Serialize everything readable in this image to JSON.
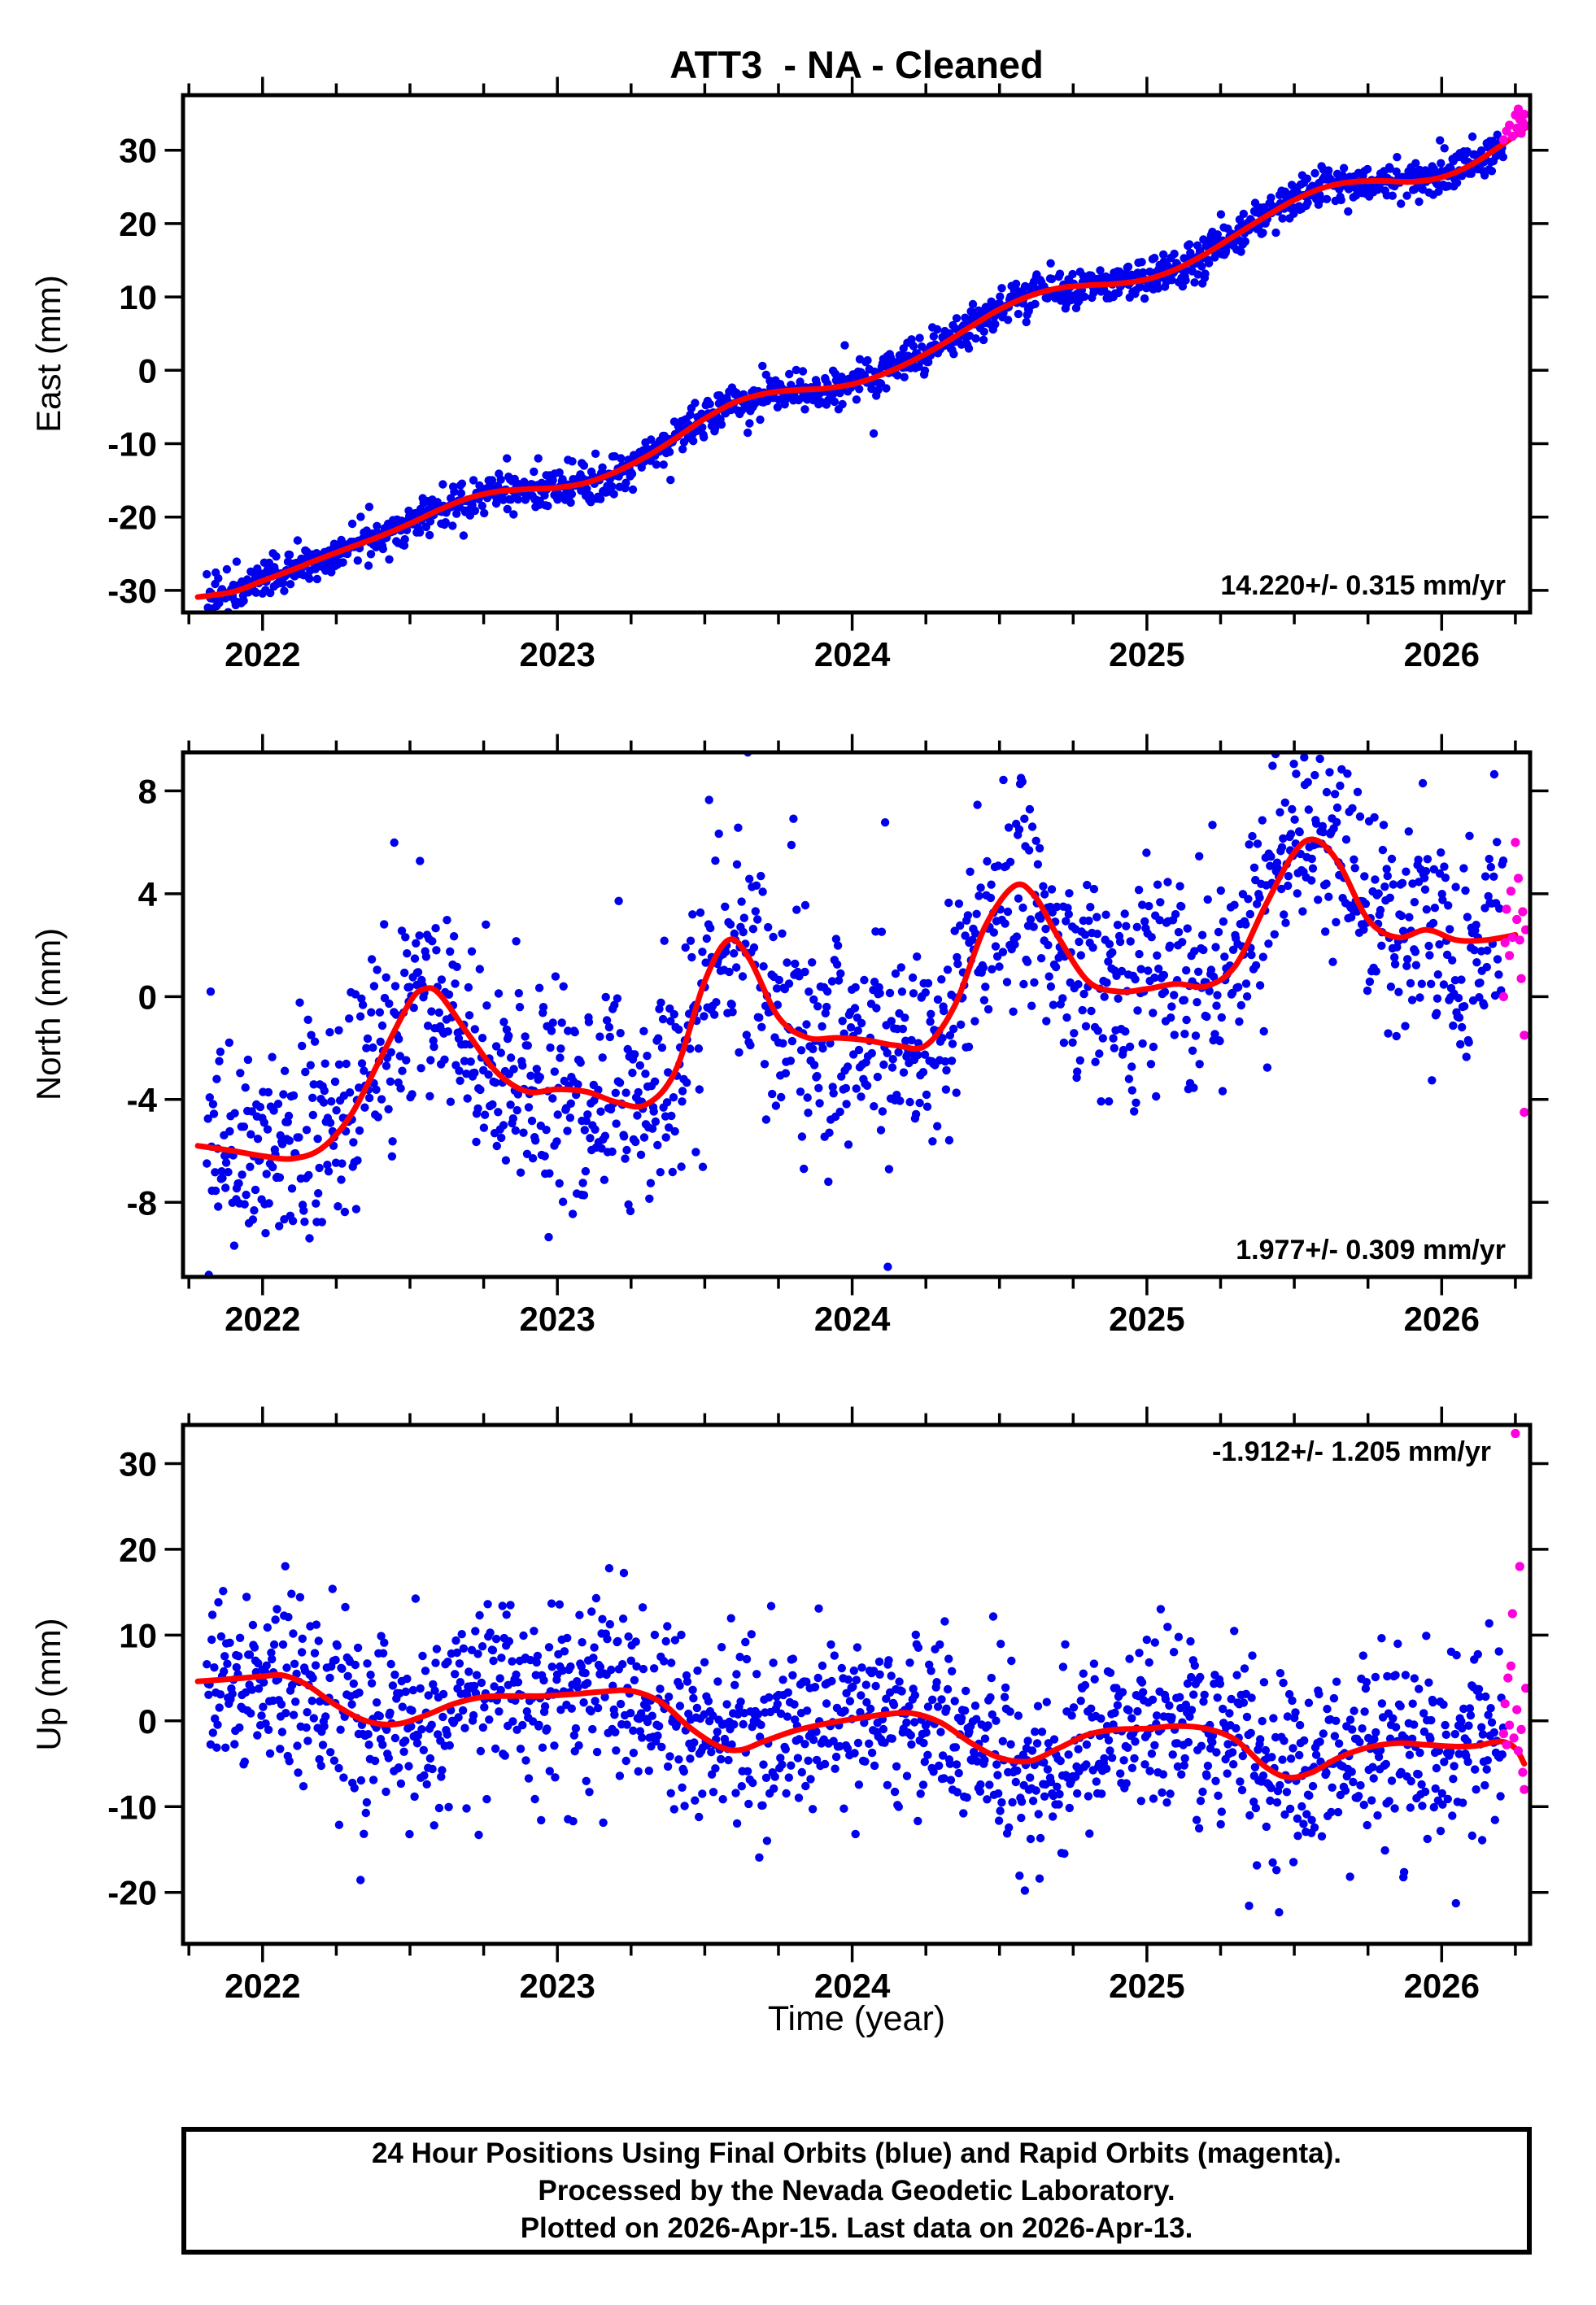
{
  "title": "ATT3  - NA - Cleaned",
  "xlabel": "Time (year)",
  "caption": {
    "lines": [
      "24 Hour Positions Using Final Orbits (blue) and Rapid Orbits (magenta).",
      "Processed by the Nevada Geodetic Laboratory.",
      "Plotted on 2026-Apr-15. Last data on 2026-Apr-13."
    ]
  },
  "colors": {
    "final_orbits": "#0000ee",
    "rapid_orbits": "#ff00dd",
    "trend": "#ff0000",
    "frame": "#000000"
  },
  "chart_data": [
    {
      "type": "scatter",
      "ylabel": "East (mm)",
      "ylim": [
        -33,
        37.5
      ],
      "yticks": [
        -30,
        -20,
        -10,
        0,
        10,
        20,
        30
      ],
      "xlim": [
        2021.73,
        2026.3
      ],
      "xticks": [
        2022,
        2023,
        2024,
        2025,
        2026
      ],
      "minor_tick_interval": 0.25,
      "rate_label": "14.220+/- 0.315 mm/yr",
      "rate_label_pos": "bottom-right",
      "trend": [
        [
          2021.78,
          -30.9
        ],
        [
          2021.9,
          -30.2
        ],
        [
          2022.0,
          -28.7
        ],
        [
          2022.1,
          -27.2
        ],
        [
          2022.2,
          -25.6
        ],
        [
          2022.3,
          -24.1
        ],
        [
          2022.4,
          -22.6
        ],
        [
          2022.5,
          -20.9
        ],
        [
          2022.6,
          -19.0
        ],
        [
          2022.7,
          -17.4
        ],
        [
          2022.8,
          -16.5
        ],
        [
          2022.9,
          -16.2
        ],
        [
          2023.0,
          -16.0
        ],
        [
          2023.1,
          -15.3
        ],
        [
          2023.2,
          -13.8
        ],
        [
          2023.3,
          -11.8
        ],
        [
          2023.4,
          -9.3
        ],
        [
          2023.5,
          -6.6
        ],
        [
          2023.6,
          -4.4
        ],
        [
          2023.7,
          -3.2
        ],
        [
          2023.8,
          -2.7
        ],
        [
          2023.9,
          -2.5
        ],
        [
          2024.0,
          -1.9
        ],
        [
          2024.1,
          -0.6
        ],
        [
          2024.2,
          1.2
        ],
        [
          2024.3,
          3.4
        ],
        [
          2024.4,
          5.9
        ],
        [
          2024.5,
          8.3
        ],
        [
          2024.6,
          10.1
        ],
        [
          2024.7,
          11.2
        ],
        [
          2024.8,
          11.6
        ],
        [
          2024.9,
          11.8
        ],
        [
          2025.0,
          12.4
        ],
        [
          2025.1,
          13.8
        ],
        [
          2025.2,
          15.9
        ],
        [
          2025.3,
          18.4
        ],
        [
          2025.4,
          20.9
        ],
        [
          2025.5,
          23.2
        ],
        [
          2025.6,
          24.9
        ],
        [
          2025.7,
          25.7
        ],
        [
          2025.8,
          25.8
        ],
        [
          2025.9,
          25.7
        ],
        [
          2026.0,
          26.3
        ],
        [
          2026.1,
          28.0
        ],
        [
          2026.2,
          30.6
        ],
        [
          2026.28,
          32.9
        ]
      ],
      "scatter": {
        "n": 1480,
        "x_start": 2021.81,
        "x_end": 2026.21,
        "noise_sd": 1.25,
        "outlier_frac": 0.05,
        "outlier_scale": 2.0,
        "seed": 7
      },
      "rapid_points": [
        [
          2026.21,
          31.4
        ],
        [
          2026.22,
          32.6
        ],
        [
          2026.23,
          33.4
        ],
        [
          2026.24,
          31.9
        ],
        [
          2026.25,
          34.8
        ],
        [
          2026.255,
          33.0
        ],
        [
          2026.26,
          35.6
        ],
        [
          2026.265,
          34.2
        ],
        [
          2026.27,
          32.3
        ],
        [
          2026.275,
          33.8
        ],
        [
          2026.28,
          34.9
        ],
        [
          2026.285,
          33.3
        ]
      ]
    },
    {
      "type": "scatter",
      "ylabel": "North (mm)",
      "ylim": [
        -10.9,
        9.5
      ],
      "yticks": [
        -8,
        -4,
        0,
        4,
        8
      ],
      "xlim": [
        2021.73,
        2026.3
      ],
      "xticks": [
        2022,
        2023,
        2024,
        2025,
        2026
      ],
      "minor_tick_interval": 0.25,
      "rate_label": "1.977+/- 0.309 mm/yr",
      "rate_label_pos": "bottom-right",
      "trend": [
        [
          2021.78,
          -5.8
        ],
        [
          2021.9,
          -6.0
        ],
        [
          2022.0,
          -6.2
        ],
        [
          2022.1,
          -6.3
        ],
        [
          2022.2,
          -5.9
        ],
        [
          2022.3,
          -4.6
        ],
        [
          2022.4,
          -2.4
        ],
        [
          2022.5,
          -0.2
        ],
        [
          2022.55,
          0.3
        ],
        [
          2022.6,
          0.1
        ],
        [
          2022.7,
          -1.5
        ],
        [
          2022.8,
          -3.0
        ],
        [
          2022.9,
          -3.7
        ],
        [
          2023.0,
          -3.6
        ],
        [
          2023.1,
          -3.7
        ],
        [
          2023.2,
          -4.1
        ],
        [
          2023.3,
          -4.2
        ],
        [
          2023.4,
          -2.9
        ],
        [
          2023.5,
          0.6
        ],
        [
          2023.58,
          2.2
        ],
        [
          2023.65,
          1.5
        ],
        [
          2023.75,
          -0.8
        ],
        [
          2023.85,
          -1.6
        ],
        [
          2023.95,
          -1.6
        ],
        [
          2024.05,
          -1.7
        ],
        [
          2024.15,
          -1.9
        ],
        [
          2024.25,
          -1.9
        ],
        [
          2024.35,
          -0.3
        ],
        [
          2024.45,
          2.7
        ],
        [
          2024.55,
          4.3
        ],
        [
          2024.62,
          3.9
        ],
        [
          2024.7,
          2.3
        ],
        [
          2024.8,
          0.6
        ],
        [
          2024.9,
          0.2
        ],
        [
          2025.0,
          0.3
        ],
        [
          2025.1,
          0.5
        ],
        [
          2025.2,
          0.4
        ],
        [
          2025.3,
          1.2
        ],
        [
          2025.4,
          3.5
        ],
        [
          2025.5,
          5.6
        ],
        [
          2025.57,
          6.1
        ],
        [
          2025.65,
          5.2
        ],
        [
          2025.75,
          3.0
        ],
        [
          2025.85,
          2.3
        ],
        [
          2025.95,
          2.6
        ],
        [
          2026.05,
          2.2
        ],
        [
          2026.15,
          2.2
        ],
        [
          2026.25,
          2.4
        ]
      ],
      "scatter": {
        "n": 1480,
        "x_start": 2021.81,
        "x_end": 2026.21,
        "noise_sd": 2.1,
        "outlier_frac": 0.06,
        "outlier_scale": 1.9,
        "seed": 8
      },
      "rapid_points": [
        [
          2026.21,
          0.0
        ],
        [
          2026.215,
          2.1
        ],
        [
          2026.22,
          3.4
        ],
        [
          2026.23,
          1.6
        ],
        [
          2026.235,
          4.1
        ],
        [
          2026.24,
          2.3
        ],
        [
          2026.25,
          6.0
        ],
        [
          2026.255,
          3.0
        ],
        [
          2026.26,
          4.6
        ],
        [
          2026.265,
          2.2
        ],
        [
          2026.27,
          0.7
        ],
        [
          2026.275,
          3.3
        ],
        [
          2026.28,
          -1.5
        ],
        [
          2026.285,
          2.6
        ],
        [
          2026.28,
          -4.5
        ]
      ]
    },
    {
      "type": "scatter",
      "ylabel": "Up (mm)",
      "ylim": [
        -26,
        34.5
      ],
      "yticks": [
        -20,
        -10,
        0,
        10,
        20,
        30
      ],
      "xlim": [
        2021.73,
        2026.3
      ],
      "xticks": [
        2022,
        2023,
        2024,
        2025,
        2026
      ],
      "minor_tick_interval": 0.25,
      "rate_label": "-1.912+/- 1.205 mm/yr",
      "rate_label_pos": "top-right",
      "trend": [
        [
          2021.78,
          4.6
        ],
        [
          2021.9,
          4.9
        ],
        [
          2022.0,
          5.2
        ],
        [
          2022.07,
          5.3
        ],
        [
          2022.15,
          4.2
        ],
        [
          2022.25,
          1.8
        ],
        [
          2022.35,
          0.0
        ],
        [
          2022.45,
          -0.4
        ],
        [
          2022.55,
          0.6
        ],
        [
          2022.65,
          2.0
        ],
        [
          2022.75,
          2.8
        ],
        [
          2022.85,
          2.9
        ],
        [
          2022.95,
          2.9
        ],
        [
          2023.05,
          3.1
        ],
        [
          2023.15,
          3.4
        ],
        [
          2023.25,
          3.5
        ],
        [
          2023.35,
          2.2
        ],
        [
          2023.45,
          -0.8
        ],
        [
          2023.55,
          -3.0
        ],
        [
          2023.62,
          -3.4
        ],
        [
          2023.7,
          -2.4
        ],
        [
          2023.8,
          -1.2
        ],
        [
          2023.9,
          -0.4
        ],
        [
          2024.0,
          0.2
        ],
        [
          2024.1,
          0.7
        ],
        [
          2024.2,
          0.9
        ],
        [
          2024.3,
          -0.2
        ],
        [
          2024.4,
          -2.5
        ],
        [
          2024.5,
          -4.3
        ],
        [
          2024.6,
          -4.7
        ],
        [
          2024.7,
          -3.2
        ],
        [
          2024.8,
          -1.6
        ],
        [
          2024.9,
          -1.0
        ],
        [
          2025.0,
          -0.9
        ],
        [
          2025.1,
          -0.6
        ],
        [
          2025.2,
          -0.9
        ],
        [
          2025.3,
          -2.2
        ],
        [
          2025.4,
          -5.3
        ],
        [
          2025.48,
          -6.6
        ],
        [
          2025.56,
          -6.0
        ],
        [
          2025.65,
          -4.3
        ],
        [
          2025.75,
          -3.1
        ],
        [
          2025.85,
          -2.6
        ],
        [
          2025.95,
          -2.8
        ],
        [
          2026.05,
          -3.0
        ],
        [
          2026.12,
          -2.9
        ],
        [
          2026.2,
          -2.4
        ],
        [
          2026.25,
          -3.2
        ],
        [
          2026.28,
          -5.0
        ]
      ],
      "scatter": {
        "n": 1480,
        "x_start": 2021.81,
        "x_end": 2026.21,
        "noise_sd": 5.4,
        "outlier_frac": 0.06,
        "outlier_scale": 1.8,
        "seed": 9
      },
      "rapid_points": [
        [
          2026.21,
          -1.5
        ],
        [
          2026.215,
          2.0
        ],
        [
          2026.22,
          -2.8
        ],
        [
          2026.225,
          5.0
        ],
        [
          2026.23,
          -0.5
        ],
        [
          2026.235,
          6.4
        ],
        [
          2026.24,
          12.5
        ],
        [
          2026.245,
          -2.0
        ],
        [
          2026.25,
          33.5
        ],
        [
          2026.255,
          1.3
        ],
        [
          2026.26,
          -3.5
        ],
        [
          2026.265,
          18.0
        ],
        [
          2026.27,
          -1.0
        ],
        [
          2026.275,
          -6.0
        ],
        [
          2026.28,
          -8.0
        ],
        [
          2026.285,
          3.8
        ]
      ]
    }
  ]
}
